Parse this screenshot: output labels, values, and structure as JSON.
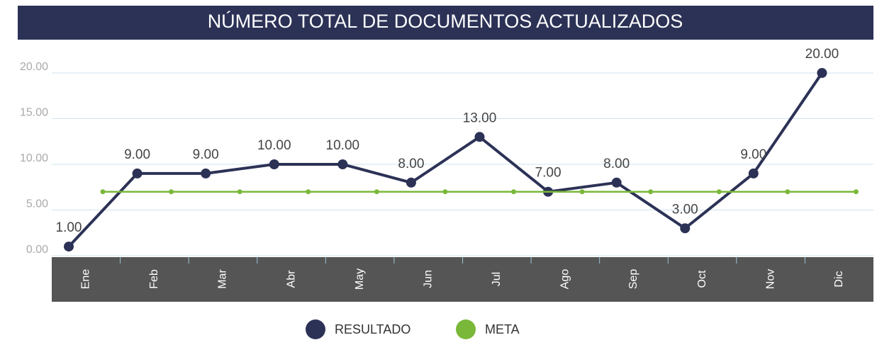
{
  "chart_data": {
    "type": "line",
    "title": "NÚMERO TOTAL DE DOCUMENTOS ACTUALIZADOS",
    "categories": [
      "Ene",
      "Feb",
      "Mar",
      "Abr",
      "May",
      "Jun",
      "Jul",
      "Ago",
      "Sep",
      "Oct",
      "Nov",
      "Dic"
    ],
    "series": [
      {
        "name": "RESULTADO",
        "color": "#2c3256",
        "values": [
          1,
          9,
          9,
          10,
          10,
          8,
          13,
          7,
          8,
          3,
          9,
          20
        ],
        "value_labels": [
          "1.00",
          "9.00",
          "9.00",
          "10.00",
          "10.00",
          "8.00",
          "13.00",
          "7.00",
          "8.00",
          "3.00",
          "9.00",
          "20.00"
        ]
      },
      {
        "name": "META",
        "color": "#7ab83a",
        "values": [
          7,
          7,
          7,
          7,
          7,
          7,
          7,
          7,
          7,
          7,
          7,
          7
        ]
      }
    ],
    "ylim": [
      0,
      20
    ],
    "yticks": [
      {
        "value": 0,
        "label": "0.00"
      },
      {
        "value": 5,
        "label": "5.00"
      },
      {
        "value": 10,
        "label": "10.00"
      },
      {
        "value": 15,
        "label": "15.00"
      },
      {
        "value": 20,
        "label": "20.00"
      }
    ],
    "grid": true,
    "legend": "bottom"
  }
}
